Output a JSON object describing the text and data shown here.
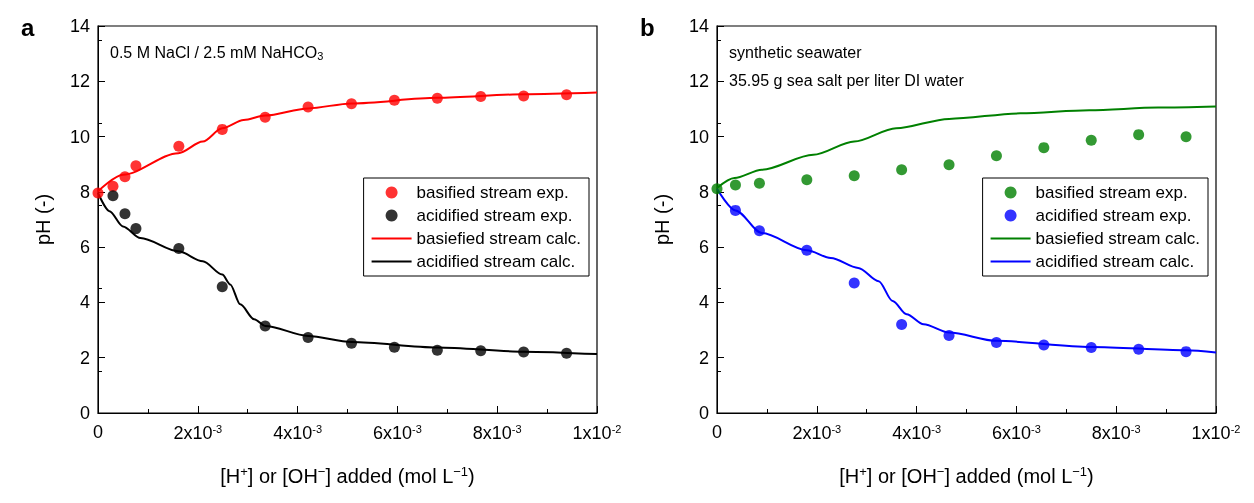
{
  "chart_data": [
    {
      "type": "line",
      "title": "a",
      "xlabel": "[H$^{+}$] or [OH$^{−}$] added (mol L$^{−1}$)",
      "ylabel": "pH (-)",
      "annotations": [
        "0.5 M NaCl / 2.5 mM NaHCO$_{3}$"
      ],
      "xlim": [
        0,
        0.01
      ],
      "xticks": [
        0,
        {
          "value": 0.002,
          "label": "2x10$^{-3}$"
        },
        {
          "value": 0.004,
          "label": "4x10$^{-3}$"
        },
        {
          "value": 0.006,
          "label": "6x10$^{-3}$"
        },
        {
          "value": 0.008,
          "label": "8x10$^{-3}$"
        },
        {
          "value": 0.01,
          "label": "1x10$^{-2}$"
        }
      ],
      "ylim": [
        0,
        14
      ],
      "yticks": [
        0,
        2,
        4,
        6,
        8,
        10,
        12,
        14
      ],
      "grid": false,
      "legend": "right",
      "series": [
        {
          "name": "basified stream exp.",
          "type": "scatter",
          "marker": "circle",
          "color": "#ff0000",
          "x": [
            0,
            0.0003,
            0.00054,
            0.00076,
            0.00162,
            0.00249,
            0.00335,
            0.00421,
            0.00508,
            0.00594,
            0.0068,
            0.00767,
            0.00853,
            0.00939
          ],
          "values": [
            7.96,
            8.2,
            8.55,
            8.94,
            9.65,
            10.26,
            10.7,
            11.07,
            11.19,
            11.31,
            11.39,
            11.45,
            11.47,
            11.51
          ]
        },
        {
          "name": "acidified stream exp.",
          "type": "scatter",
          "marker": "circle",
          "color": "#000000",
          "x": [
            0.0003,
            0.00054,
            0.00076,
            0.00162,
            0.00249,
            0.00335,
            0.00421,
            0.00508,
            0.00594,
            0.0068,
            0.00767,
            0.00853,
            0.00939
          ],
          "values": [
            7.86,
            7.21,
            6.67,
            5.95,
            4.57,
            3.15,
            2.73,
            2.52,
            2.38,
            2.27,
            2.25,
            2.21,
            2.16
          ]
        },
        {
          "name": "basiefied stream calc.",
          "color": "#ff0000",
          "x": [
            0,
            0.0005,
            0.00161,
            0.0021,
            0.00249,
            0.00292,
            0.00335,
            0.00421,
            0.00508,
            0.0068,
            0.00853,
            0.01
          ],
          "values": [
            8.02,
            8.62,
            9.4,
            9.82,
            10.3,
            10.6,
            10.76,
            11.02,
            11.2,
            11.4,
            11.53,
            11.59
          ]
        },
        {
          "name": "acidified stream calc.",
          "color": "#000000",
          "x": [
            0,
            0.00023,
            0.0005,
            0.00085,
            0.00161,
            0.0021,
            0.00249,
            0.00265,
            0.00285,
            0.00313,
            0.00335,
            0.00421,
            0.00508,
            0.0068,
            0.00853,
            0.01
          ],
          "values": [
            7.96,
            7.3,
            6.75,
            6.33,
            5.85,
            5.49,
            5.01,
            4.65,
            3.93,
            3.39,
            3.15,
            2.79,
            2.57,
            2.37,
            2.22,
            2.13
          ]
        }
      ]
    },
    {
      "type": "line",
      "title": "b",
      "xlabel": "[H$^{+}$] or [OH$^{−}$] added (mol L$^{−1}$)",
      "ylabel": "pH (-)",
      "annotations": [
        "synthetic seawater",
        "35.95 g sea salt per liter DI water"
      ],
      "xlim": [
        0,
        0.01
      ],
      "xticks": [
        0,
        {
          "value": 0.002,
          "label": "2x10$^{-3}$"
        },
        {
          "value": 0.004,
          "label": "4x10$^{-3}$"
        },
        {
          "value": 0.006,
          "label": "6x10$^{-3}$"
        },
        {
          "value": 0.008,
          "label": "8x10$^{-3}$"
        },
        {
          "value": 0.01,
          "label": "1x10$^{-2}$"
        }
      ],
      "ylim": [
        0,
        14
      ],
      "yticks": [
        0,
        2,
        4,
        6,
        8,
        10,
        12,
        14
      ],
      "grid": false,
      "legend": "right",
      "series": [
        {
          "name": "basified stream exp.",
          "type": "scatter",
          "marker": "circle",
          "color": "#008000",
          "x": [
            0,
            0.00037,
            0.00085,
            0.0018,
            0.00275,
            0.0037,
            0.00465,
            0.0056,
            0.00655,
            0.0075,
            0.00845,
            0.0094
          ],
          "values": [
            8.11,
            8.25,
            8.31,
            8.44,
            8.58,
            8.8,
            8.98,
            9.31,
            9.6,
            9.87,
            10.07,
            9.99
          ]
        },
        {
          "name": "acidified stream exp.",
          "type": "scatter",
          "marker": "circle",
          "color": "#0000ff",
          "x": [
            0.00037,
            0.00085,
            0.0018,
            0.00275,
            0.0037,
            0.00465,
            0.0056,
            0.00655,
            0.0075,
            0.00845,
            0.0094
          ],
          "values": [
            7.33,
            6.59,
            5.89,
            4.7,
            3.2,
            2.8,
            2.55,
            2.46,
            2.37,
            2.31,
            2.22
          ]
        },
        {
          "name": "basiefied stream calc.",
          "color": "#008000",
          "x": [
            0,
            0.00035,
            0.0009,
            0.00193,
            0.00275,
            0.00359,
            0.00465,
            0.00608,
            0.00746,
            0.00884,
            0.01
          ],
          "values": [
            8.14,
            8.5,
            8.8,
            9.34,
            9.82,
            10.3,
            10.64,
            10.84,
            10.95,
            11.05,
            11.09
          ]
        },
        {
          "name": "acidified stream calc.",
          "color": "#0000ff",
          "x": [
            0,
            0.00037,
            0.0009,
            0.0018,
            0.00228,
            0.00283,
            0.00324,
            0.00352,
            0.0038,
            0.00414,
            0.00465,
            0.0056,
            0.0075,
            0.0094,
            0.01
          ],
          "values": [
            8.11,
            7.33,
            6.51,
            5.89,
            5.61,
            5.25,
            4.77,
            4.05,
            3.57,
            3.21,
            2.91,
            2.61,
            2.39,
            2.27,
            2.19
          ]
        }
      ]
    }
  ]
}
